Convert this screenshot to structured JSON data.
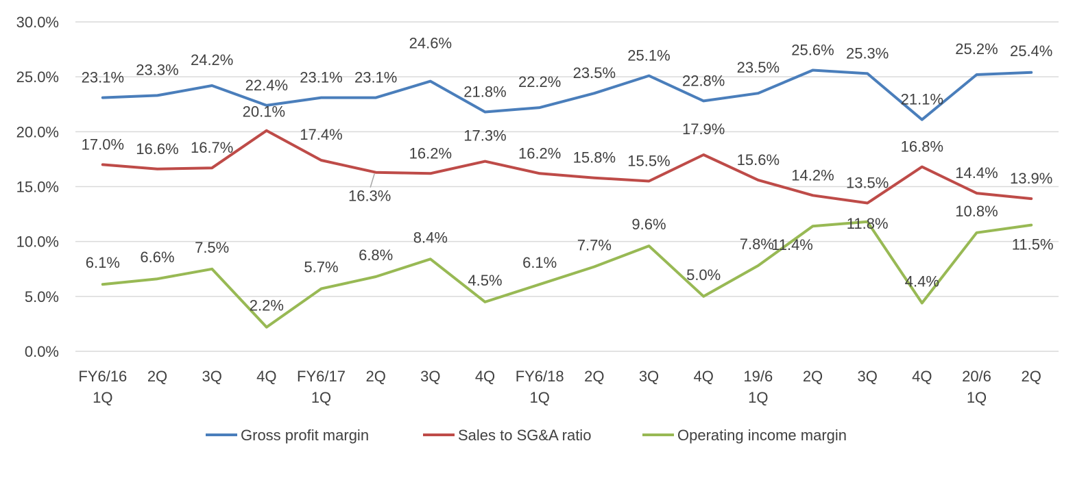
{
  "chart_data": {
    "type": "line",
    "categories": [
      [
        "FY6/16",
        "1Q"
      ],
      [
        "2Q"
      ],
      [
        "3Q"
      ],
      [
        "4Q"
      ],
      [
        "FY6/17",
        "1Q"
      ],
      [
        "2Q"
      ],
      [
        "3Q"
      ],
      [
        "4Q"
      ],
      [
        "FY6/18",
        "1Q"
      ],
      [
        "2Q"
      ],
      [
        "3Q"
      ],
      [
        "4Q"
      ],
      [
        "19/6",
        "1Q"
      ],
      [
        "2Q"
      ],
      [
        "3Q"
      ],
      [
        "4Q"
      ],
      [
        "20/6",
        "1Q"
      ],
      [
        "2Q"
      ]
    ],
    "y_ticks": [
      "0.0%",
      "5.0%",
      "10.0%",
      "15.0%",
      "20.0%",
      "25.0%",
      "30.0%"
    ],
    "ylim": [
      0,
      30
    ],
    "grid": true,
    "legend_position": "bottom",
    "series": [
      {
        "name": "Gross profit margin",
        "color": "#4a7ebb",
        "values": [
          23.1,
          23.3,
          24.2,
          22.4,
          23.1,
          23.1,
          24.6,
          21.8,
          22.2,
          23.5,
          25.1,
          22.8,
          23.5,
          25.6,
          25.3,
          21.1,
          25.2,
          25.4
        ],
        "labels": [
          "23.1%",
          "23.3%",
          "24.2%",
          "22.4%",
          "23.1%",
          "23.1%",
          "24.6%",
          "21.8%",
          "22.2%",
          "23.5%",
          "25.1%",
          "22.8%",
          "23.5%",
          "25.6%",
          "25.3%",
          "21.1%",
          "25.2%",
          "25.4%"
        ]
      },
      {
        "name": "Sales to SG&A ratio",
        "color": "#be4b48",
        "values": [
          17.0,
          16.6,
          16.7,
          20.1,
          17.4,
          16.3,
          16.2,
          17.3,
          16.2,
          15.8,
          15.5,
          17.9,
          15.6,
          14.2,
          13.5,
          16.8,
          14.4,
          13.9
        ],
        "labels": [
          "17.0%",
          "16.6%",
          "16.7%",
          "20.1%",
          "17.4%",
          "16.3%",
          "16.2%",
          "17.3%",
          "16.2%",
          "15.8%",
          "15.5%",
          "17.9%",
          "15.6%",
          "14.2%",
          "13.5%",
          "16.8%",
          "14.4%",
          "13.9%"
        ]
      },
      {
        "name": "Operating income margin",
        "color": "#98b954",
        "values": [
          6.1,
          6.6,
          7.5,
          2.2,
          5.7,
          6.8,
          8.4,
          4.5,
          6.1,
          7.7,
          9.6,
          5.0,
          7.8,
          11.4,
          11.8,
          4.4,
          10.8,
          11.5
        ],
        "labels": [
          "6.1%",
          "6.6%",
          "7.5%",
          "2.2%",
          "5.7%",
          "6.8%",
          "8.4%",
          "4.5%",
          "6.1%",
          "7.7%",
          "9.6%",
          "5.0%",
          "7.8%",
          "11.4%",
          "11.8%",
          "4.4%",
          "10.8%",
          "11.5%"
        ]
      }
    ]
  }
}
